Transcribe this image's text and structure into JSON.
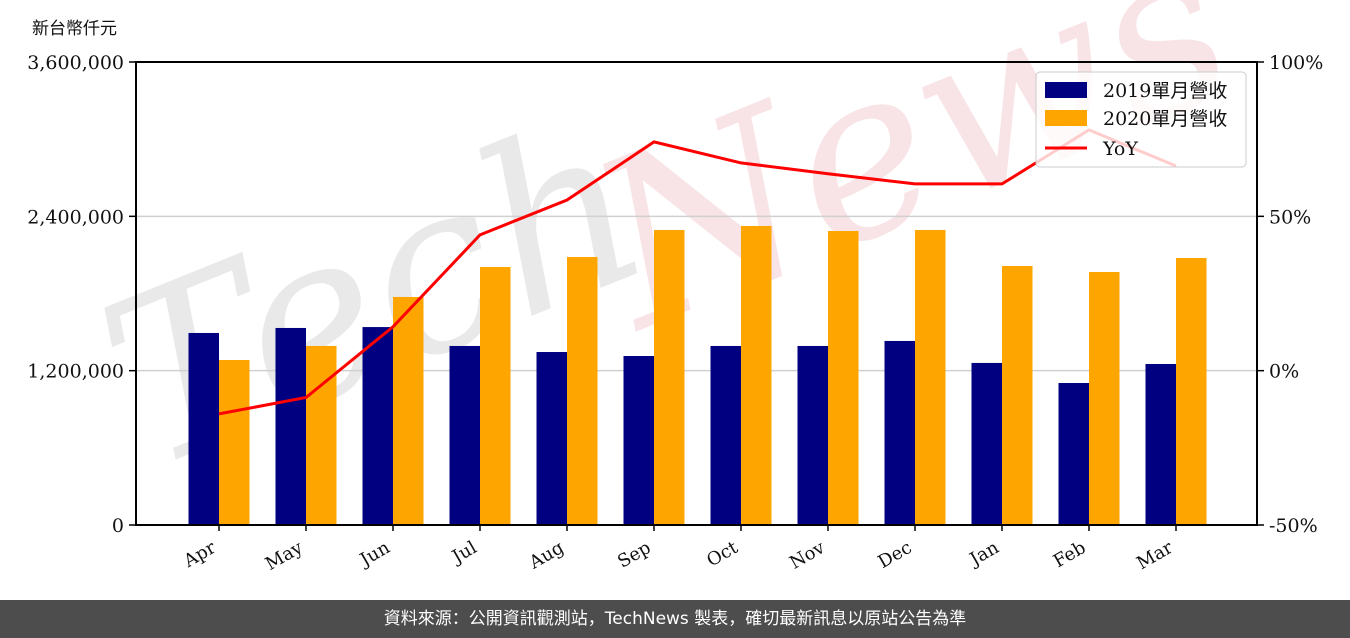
{
  "chart_data": {
    "type": "bar",
    "title": "",
    "ylabel": "新台幣仟元",
    "xlabel": "",
    "categories": [
      "Apr",
      "May",
      "Jun",
      "Jul",
      "Aug",
      "Sep",
      "Oct",
      "Nov",
      "Dec",
      "Jan",
      "Feb",
      "Mar"
    ],
    "series": [
      {
        "name": "2019單月營收",
        "type": "bar",
        "axis": "left",
        "color": "#000080",
        "values": [
          1493000,
          1532000,
          1539000,
          1392000,
          1345000,
          1314000,
          1392000,
          1392000,
          1431000,
          1260000,
          1104000,
          1252000
        ]
      },
      {
        "name": "2020單月營收",
        "type": "bar",
        "axis": "left",
        "color": "#FFA500",
        "values": [
          1283000,
          1392000,
          1773000,
          2006000,
          2084000,
          2294000,
          2325000,
          2286000,
          2294000,
          2014000,
          1967000,
          2076000
        ]
      },
      {
        "name": "YoY",
        "type": "line",
        "axis": "right",
        "color": "#FF0000",
        "unit": "%",
        "values": [
          -14.0,
          -8.7,
          14.2,
          44.0,
          55.3,
          74.1,
          67.3,
          63.8,
          60.5,
          60.5,
          78.0,
          66.3
        ]
      }
    ],
    "left_axis": {
      "ylim": [
        0,
        3600000
      ],
      "ticks": [
        0,
        1200000,
        2400000,
        3600000
      ],
      "tick_labels": [
        "0",
        "1,200,000",
        "2,400,000",
        "3,600,000"
      ]
    },
    "right_axis": {
      "ylim": [
        -50,
        100
      ],
      "ticks": [
        -50,
        0,
        50,
        100
      ],
      "tick_labels": [
        "-50%",
        "0%",
        "50%",
        "100%"
      ]
    },
    "grid": {
      "horizontal": true,
      "vertical": false
    },
    "legend_position": "upper right",
    "watermark": "TechNews"
  },
  "header": {
    "unit_label": "新台幣仟元"
  },
  "legend": {
    "item_2019": "2019單月營收",
    "item_2020": "2020單月營收",
    "item_yoy": "YoY"
  },
  "footer": {
    "source_text": "資料來源：公開資訊觀測站，TechNews 製表，確切最新訊息以原站公告為準"
  }
}
